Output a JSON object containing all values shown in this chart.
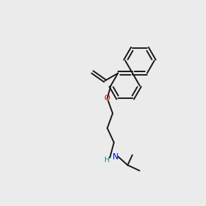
{
  "background_color": "#ebebeb",
  "bond_color": "#1a1a1a",
  "oxygen_color": "#cc0000",
  "nitrogen_color": "#0000cc",
  "h_color": "#008888",
  "line_width": 1.5,
  "fig_width": 3.0,
  "fig_height": 3.0,
  "dpi": 100,
  "xlim": [
    0,
    10
  ],
  "ylim": [
    0,
    10
  ]
}
